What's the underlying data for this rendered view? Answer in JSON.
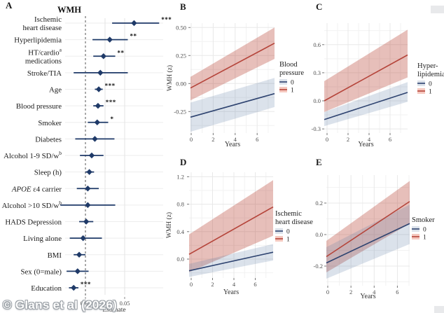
{
  "panels": {
    "a": "A",
    "b": "B",
    "c": "C",
    "d": "D",
    "e": "E"
  },
  "watermark": "© Glans et al (2026)",
  "colors": {
    "forest_navy": "#1f3a68",
    "line_navy": "#2e4370",
    "line_red": "#b5443a",
    "band_red": "rgba(184,67,53,0.34)",
    "band_blue": "rgba(90,124,166,0.22)",
    "grid_major": "#e8e8e8",
    "grid_minor": "#f2f2f2"
  },
  "chart_data": [
    {
      "id": "A",
      "type": "forest",
      "title": "WMH",
      "xlabel": "Estimate",
      "xticks": [
        "0.00",
        "0.05"
      ],
      "xtick_values": [
        0,
        0.05
      ],
      "xlim": [
        -0.026,
        0.111
      ],
      "rows": [
        {
          "label": "Ischemic heart disease",
          "lines": [
            "Ischemic",
            "heart disease"
          ],
          "estimate": 0.062,
          "ci": [
            0.034,
            0.094
          ],
          "sig": "***"
        },
        {
          "label": "Hyperlipidemia",
          "estimate": 0.031,
          "ci": [
            0.009,
            0.054
          ],
          "sig": "**"
        },
        {
          "label": "HT/cardio medications",
          "lines": [
            "HT/cardio",
            "medications"
          ],
          "sup": "a",
          "estimate": 0.023,
          "ci": [
            0.01,
            0.038
          ],
          "sig": "**"
        },
        {
          "label": "Stroke/TIA",
          "estimate": 0.019,
          "ci": [
            -0.015,
            0.054
          ],
          "sig": ""
        },
        {
          "label": "Age",
          "estimate": 0.017,
          "ci": [
            0.012,
            0.022
          ],
          "sig": "***"
        },
        {
          "label": "Blood pressure",
          "estimate": 0.016,
          "ci": [
            0.01,
            0.023
          ],
          "sig": "***"
        },
        {
          "label": "Smoker",
          "estimate": 0.015,
          "ci": [
            0.003,
            0.029
          ],
          "sig": "*"
        },
        {
          "label": "Diabetes",
          "estimate": 0.012,
          "ci": [
            -0.013,
            0.037
          ],
          "sig": ""
        },
        {
          "label": "Alcohol 1-9 SD/w",
          "sup": "b",
          "estimate": 0.008,
          "ci": [
            -0.007,
            0.023
          ],
          "sig": ""
        },
        {
          "label": "Sleep (h)",
          "estimate": 0.005,
          "ci": [
            0.0,
            0.011
          ],
          "sig": ""
        },
        {
          "label": "APOE ε4 carrier",
          "italic_prefix": "APOE",
          "rest": " ε4 carrier",
          "estimate": 0.003,
          "ci": [
            -0.011,
            0.017
          ],
          "sig": ""
        },
        {
          "label": "Alcohol >10 SD/w",
          "sup": "b",
          "estimate": 0.003,
          "ci": [
            -0.032,
            0.038
          ],
          "sig": ""
        },
        {
          "label": "HADS Depression",
          "estimate": 0.001,
          "ci": [
            -0.008,
            0.01
          ],
          "sig": ""
        },
        {
          "label": "Living alone",
          "estimate": -0.003,
          "ci": [
            -0.02,
            0.021
          ],
          "sig": ""
        },
        {
          "label": "BMI",
          "estimate": -0.008,
          "ci": [
            -0.015,
            0.0
          ],
          "sig": ""
        },
        {
          "label": "Sex (0=male)",
          "estimate": -0.01,
          "ci": [
            -0.024,
            0.004
          ],
          "sig": ""
        },
        {
          "label": "Education",
          "estimate": -0.015,
          "ci": [
            -0.021,
            -0.009
          ],
          "sig": "***"
        }
      ]
    },
    {
      "id": "B",
      "type": "line-band",
      "xlabel": "Years",
      "ylabel": "WMH (z)",
      "xticks": [
        "0",
        "2",
        "4",
        "6"
      ],
      "xtick_values": [
        0,
        2,
        4,
        6
      ],
      "yticks": [
        "0.50",
        "0.25",
        "0.00",
        "-0.25"
      ],
      "ytick_values": [
        0.5,
        0.25,
        0,
        -0.25
      ],
      "ylim": [
        -0.44,
        0.54
      ],
      "xlim": [
        0,
        7.5
      ],
      "legend": {
        "title_lines": [
          "Blood",
          "pressure"
        ],
        "entries": [
          {
            "label": "0",
            "line": "#2e4370",
            "fill": "#dce2ea"
          },
          {
            "label": "1",
            "line": "#b5443a",
            "fill": "#f5c8bf"
          }
        ]
      },
      "series": [
        {
          "name": "1",
          "line_color": "#b5443a",
          "band_fill": "rgba(184,67,53,0.34)",
          "line": [
            -0.04,
            0.36
          ],
          "band_top": [
            0.06,
            0.5
          ],
          "band_bot": [
            -0.15,
            0.22
          ]
        },
        {
          "name": "0",
          "line_color": "#2e4370",
          "band_fill": "rgba(90,124,166,0.22)",
          "line": [
            -0.3,
            -0.09
          ],
          "band_top": [
            -0.17,
            0.05
          ],
          "band_bot": [
            -0.43,
            -0.21
          ]
        }
      ]
    },
    {
      "id": "C",
      "type": "line-band",
      "xlabel": "Years",
      "ylabel": "",
      "xticks": [
        "0",
        "2",
        "4",
        "6"
      ],
      "xtick_values": [
        0,
        2,
        4,
        6
      ],
      "yticks": [
        "0.6",
        "0.3",
        "0.0",
        "-0.3"
      ],
      "ytick_values": [
        0.6,
        0.3,
        0,
        -0.3
      ],
      "ylim": [
        -0.34,
        0.83
      ],
      "xlim": [
        0,
        7.5
      ],
      "legend": {
        "title_lines": [
          "Hyper-",
          "lipidemia"
        ],
        "entries": [
          {
            "label": "0",
            "line": "#2e4370",
            "fill": "#dce2ea"
          },
          {
            "label": "1",
            "line": "#b5443a",
            "fill": "#f5c8bf"
          }
        ]
      },
      "series": [
        {
          "name": "1",
          "line_color": "#b5443a",
          "band_fill": "rgba(184,67,53,0.34)",
          "line": [
            0.0,
            0.49
          ],
          "band_top": [
            0.21,
            0.76
          ],
          "band_bot": [
            -0.12,
            0.25
          ]
        },
        {
          "name": "0",
          "line_color": "#2e4370",
          "band_fill": "rgba(90,124,166,0.22)",
          "line": [
            -0.2,
            0.09
          ],
          "band_top": [
            -0.12,
            0.2
          ],
          "band_bot": [
            -0.27,
            -0.01
          ]
        }
      ]
    },
    {
      "id": "D",
      "type": "line-band",
      "xlabel": "Years",
      "ylabel": "WMH (z)",
      "xticks": [
        "0",
        "2",
        "4",
        "6"
      ],
      "xtick_values": [
        0,
        2,
        4,
        6
      ],
      "yticks": [
        "1.2",
        "0.8",
        "0.4",
        "0.0"
      ],
      "ytick_values": [
        1.2,
        0.8,
        0.4,
        0
      ],
      "ylim": [
        -0.28,
        1.26
      ],
      "xlim": [
        0,
        7.5
      ],
      "legend": {
        "title_lines": [
          "Ischemic",
          "heart disease"
        ],
        "entries": [
          {
            "label": "0",
            "line": "#2e4370",
            "fill": "#dce2ea"
          },
          {
            "label": "1",
            "line": "#b5443a",
            "fill": "#f5c8bf"
          }
        ]
      },
      "series": [
        {
          "name": "1",
          "line_color": "#b5443a",
          "band_fill": "rgba(184,67,53,0.34)",
          "line": [
            0.07,
            0.76
          ],
          "band_top": [
            0.36,
            1.15
          ],
          "band_bot": [
            -0.19,
            0.34
          ]
        },
        {
          "name": "0",
          "line_color": "#2e4370",
          "band_fill": "rgba(90,124,166,0.22)",
          "line": [
            -0.17,
            0.1
          ],
          "band_top": [
            -0.07,
            0.22
          ],
          "band_bot": [
            -0.26,
            -0.02
          ]
        }
      ]
    },
    {
      "id": "E",
      "type": "line-band",
      "xlabel": "Years",
      "ylabel": "",
      "xticks": [
        "0",
        "2",
        "4",
        "6"
      ],
      "xtick_values": [
        0,
        2,
        4,
        6
      ],
      "yticks": [
        "0.2",
        "0.0",
        "-0.2"
      ],
      "ytick_values": [
        0.2,
        0,
        -0.2
      ],
      "ylim": [
        -0.33,
        0.38
      ],
      "xlim": [
        0,
        7.2
      ],
      "legend": {
        "title_lines": [
          "Smoker"
        ],
        "entries": [
          {
            "label": "0",
            "line": "#2e4370",
            "fill": "#dce2ea"
          },
          {
            "label": "1",
            "line": "#b5443a",
            "fill": "#f5c8bf"
          }
        ]
      },
      "series": [
        {
          "name": "1",
          "line_color": "#b5443a",
          "band_fill": "rgba(184,67,53,0.34)",
          "line": [
            -0.14,
            0.21
          ],
          "band_top": [
            -0.04,
            0.34
          ],
          "band_bot": [
            -0.24,
            0.07
          ]
        },
        {
          "name": "0",
          "line_color": "#2e4370",
          "band_fill": "rgba(90,124,166,0.22)",
          "line": [
            -0.18,
            0.07
          ],
          "band_top": [
            -0.08,
            0.19
          ],
          "band_bot": [
            -0.28,
            -0.06
          ]
        }
      ]
    }
  ]
}
